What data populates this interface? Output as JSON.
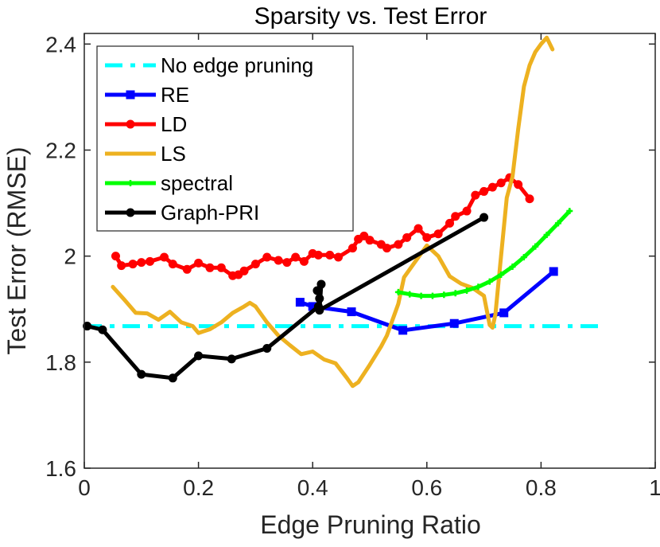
{
  "chart_data": {
    "type": "line",
    "title": "Sparsity vs. Test Error",
    "xlabel": "Edge Pruning Ratio",
    "ylabel": "Test Error (RMSE)",
    "xlim": [
      0,
      1
    ],
    "ylim": [
      1.6,
      2.42
    ],
    "xticks": [
      0,
      0.2,
      0.4,
      0.6,
      0.8,
      1
    ],
    "xtick_labels": [
      "0",
      "0.2",
      "0.4",
      "0.6",
      "0.8",
      "1"
    ],
    "yticks": [
      1.6,
      1.8,
      2,
      2.2,
      2.4
    ],
    "ytick_labels": [
      "1.6",
      "1.8",
      "2",
      "2.2",
      "2.4"
    ],
    "grid": false,
    "legend_position": "top-left",
    "series": [
      {
        "name": "No edge pruning",
        "color": "#00FFFF",
        "style": "dashdot",
        "marker": "none",
        "x": [
          0.0,
          0.9
        ],
        "y": [
          1.868,
          1.868
        ]
      },
      {
        "name": "RE",
        "color": "#0000FF",
        "style": "solid",
        "marker": "square",
        "x": [
          0.378,
          0.4,
          0.468,
          0.558,
          0.648,
          0.735,
          0.822
        ],
        "y": [
          1.913,
          1.905,
          1.895,
          1.86,
          1.873,
          1.893,
          1.971
        ]
      },
      {
        "name": "LD",
        "color": "#FF0000",
        "style": "solid",
        "marker": "circle",
        "x": [
          0.055,
          0.065,
          0.085,
          0.1,
          0.115,
          0.14,
          0.155,
          0.18,
          0.2,
          0.22,
          0.24,
          0.26,
          0.27,
          0.28,
          0.3,
          0.32,
          0.34,
          0.355,
          0.37,
          0.385,
          0.4,
          0.41,
          0.43,
          0.445,
          0.47,
          0.48,
          0.49,
          0.5,
          0.52,
          0.53,
          0.55,
          0.565,
          0.585,
          0.6,
          0.62,
          0.64,
          0.65,
          0.67,
          0.685,
          0.7,
          0.715,
          0.73,
          0.745,
          0.76,
          0.78
        ],
        "y": [
          2.0,
          1.982,
          1.985,
          1.988,
          1.99,
          1.998,
          1.985,
          1.975,
          1.987,
          1.978,
          1.978,
          1.963,
          1.965,
          1.972,
          1.985,
          1.998,
          1.992,
          1.988,
          1.998,
          1.99,
          2.005,
          2.002,
          2.002,
          1.998,
          2.015,
          2.032,
          2.038,
          2.03,
          2.022,
          2.015,
          2.022,
          2.035,
          2.052,
          2.035,
          2.042,
          2.062,
          2.075,
          2.085,
          2.115,
          2.122,
          2.13,
          2.138,
          2.148,
          2.135,
          2.108
        ]
      },
      {
        "name": "LS",
        "color": "#EDB120",
        "style": "solid",
        "marker": "point",
        "x": [
          0.05,
          0.07,
          0.09,
          0.11,
          0.13,
          0.15,
          0.17,
          0.19,
          0.2,
          0.22,
          0.24,
          0.26,
          0.28,
          0.29,
          0.3,
          0.32,
          0.34,
          0.36,
          0.38,
          0.4,
          0.42,
          0.44,
          0.46,
          0.47,
          0.48,
          0.5,
          0.52,
          0.53,
          0.55,
          0.56,
          0.58,
          0.6,
          0.62,
          0.64,
          0.66,
          0.68,
          0.7,
          0.71,
          0.715,
          0.72,
          0.73,
          0.74,
          0.75,
          0.76,
          0.77,
          0.78,
          0.79,
          0.8,
          0.81,
          0.82
        ],
        "y": [
          1.942,
          1.918,
          1.893,
          1.892,
          1.88,
          1.895,
          1.875,
          1.868,
          1.855,
          1.862,
          1.875,
          1.893,
          1.905,
          1.912,
          1.905,
          1.875,
          1.85,
          1.832,
          1.815,
          1.82,
          1.805,
          1.798,
          1.77,
          1.755,
          1.762,
          1.795,
          1.83,
          1.85,
          1.91,
          1.96,
          1.99,
          2.02,
          2.0,
          1.962,
          1.948,
          1.94,
          1.925,
          1.87,
          1.865,
          1.89,
          2.0,
          2.11,
          2.15,
          2.24,
          2.32,
          2.36,
          2.385,
          2.4,
          2.412,
          2.39
        ]
      },
      {
        "name": "spectral",
        "color": "#00FF00",
        "style": "solid",
        "marker": "plus",
        "x": [
          0.55,
          0.57,
          0.59,
          0.61,
          0.63,
          0.65,
          0.67,
          0.69,
          0.71,
          0.73,
          0.75,
          0.77,
          0.79,
          0.81,
          0.83,
          0.85
        ],
        "y": [
          1.932,
          1.928,
          1.925,
          1.925,
          1.927,
          1.93,
          1.935,
          1.942,
          1.952,
          1.965,
          1.98,
          1.998,
          2.018,
          2.04,
          2.062,
          2.085
        ]
      },
      {
        "name": "Graph-PRI",
        "color": "#000000",
        "style": "solid",
        "marker": "circle",
        "x": [
          0.005,
          0.032,
          0.1,
          0.155,
          0.2,
          0.258,
          0.32,
          0.41,
          0.412,
          0.408,
          0.415,
          0.412,
          0.7
        ],
        "y": [
          1.868,
          1.861,
          1.777,
          1.77,
          1.812,
          1.806,
          1.826,
          1.905,
          1.92,
          1.935,
          1.947,
          1.898,
          2.073
        ]
      }
    ]
  }
}
